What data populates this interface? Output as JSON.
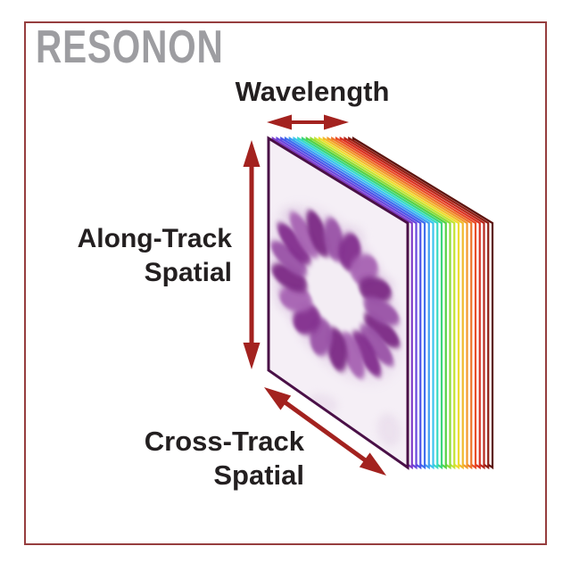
{
  "brand": {
    "logo_text": "RESONON",
    "logo_color": "#9d9da1"
  },
  "frame": {
    "border_color": "#963d3e"
  },
  "labels": {
    "text_color": "#231f20",
    "wavelength": "Wavelength",
    "along_track_line1": "Along-Track",
    "along_track_line2": "Spatial",
    "cross_track_line1": "Cross-Track",
    "cross_track_line2": "Spatial"
  },
  "arrows": {
    "color": "#a3221f",
    "names": [
      "wavelength-arrow",
      "along-track-arrow",
      "cross-track-arrow"
    ]
  },
  "cube": {
    "description": "hyperspectral datacube: stack of spectral band slices from violet (front) to dark red (back) behind a front spatial image of a purple flower ring",
    "front_face": {
      "background": "#f5eff6",
      "border_color": "#4a1047",
      "blotch_color": "#e7daea",
      "image": "purple-flower-ring"
    },
    "flower": {
      "petal_colors": [
        "#7c2b85",
        "#9a53a7",
        "#822f8e",
        "#a763b3"
      ],
      "halo_color": "#c9a3d2",
      "center_color": "#f3edf4"
    },
    "slice_colors": [
      "#7e3cc8",
      "#6747de",
      "#4d55e8",
      "#3f6eee",
      "#3f9df2",
      "#3cc4ee",
      "#38dbc4",
      "#3cd67c",
      "#55d244",
      "#90dc38",
      "#c4e434",
      "#eedd30",
      "#f2ba2e",
      "#f2982c",
      "#ee742a",
      "#e94c27",
      "#da3121",
      "#b7271b",
      "#8e1d13",
      "#5d120c"
    ],
    "slice_fill": "#ffffff"
  }
}
